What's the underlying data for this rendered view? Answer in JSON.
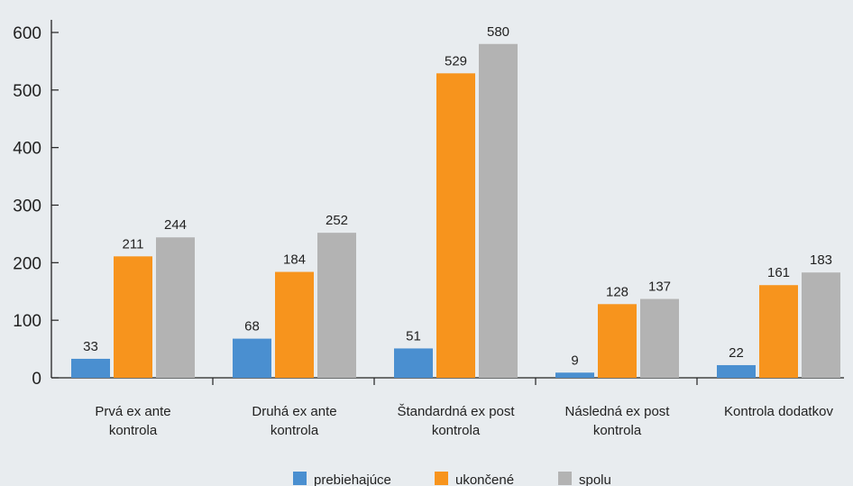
{
  "chart_data": {
    "type": "bar",
    "categories": [
      [
        "Prvá ex ante",
        "kontrola"
      ],
      [
        "Druhá ex ante",
        "kontrola"
      ],
      [
        "Štandardná ex post",
        "kontrola"
      ],
      [
        "Následná ex post",
        "kontrola"
      ],
      [
        "Kontrola dodatkov"
      ]
    ],
    "series": [
      {
        "name": "prebiehajúce",
        "color": "#4a8fd0",
        "values": [
          33,
          68,
          51,
          9,
          22
        ]
      },
      {
        "name": "ukončené",
        "color": "#f7941d",
        "values": [
          211,
          184,
          529,
          128,
          161
        ]
      },
      {
        "name": "spolu",
        "color": "#b3b3b3",
        "values": [
          244,
          252,
          580,
          137,
          183
        ]
      }
    ],
    "ylim": [
      0,
      600
    ],
    "yticks": [
      0,
      100,
      200,
      300,
      400,
      500,
      600
    ],
    "grid": false,
    "legend_position": "bottom-center",
    "background": "#e8ecef"
  }
}
